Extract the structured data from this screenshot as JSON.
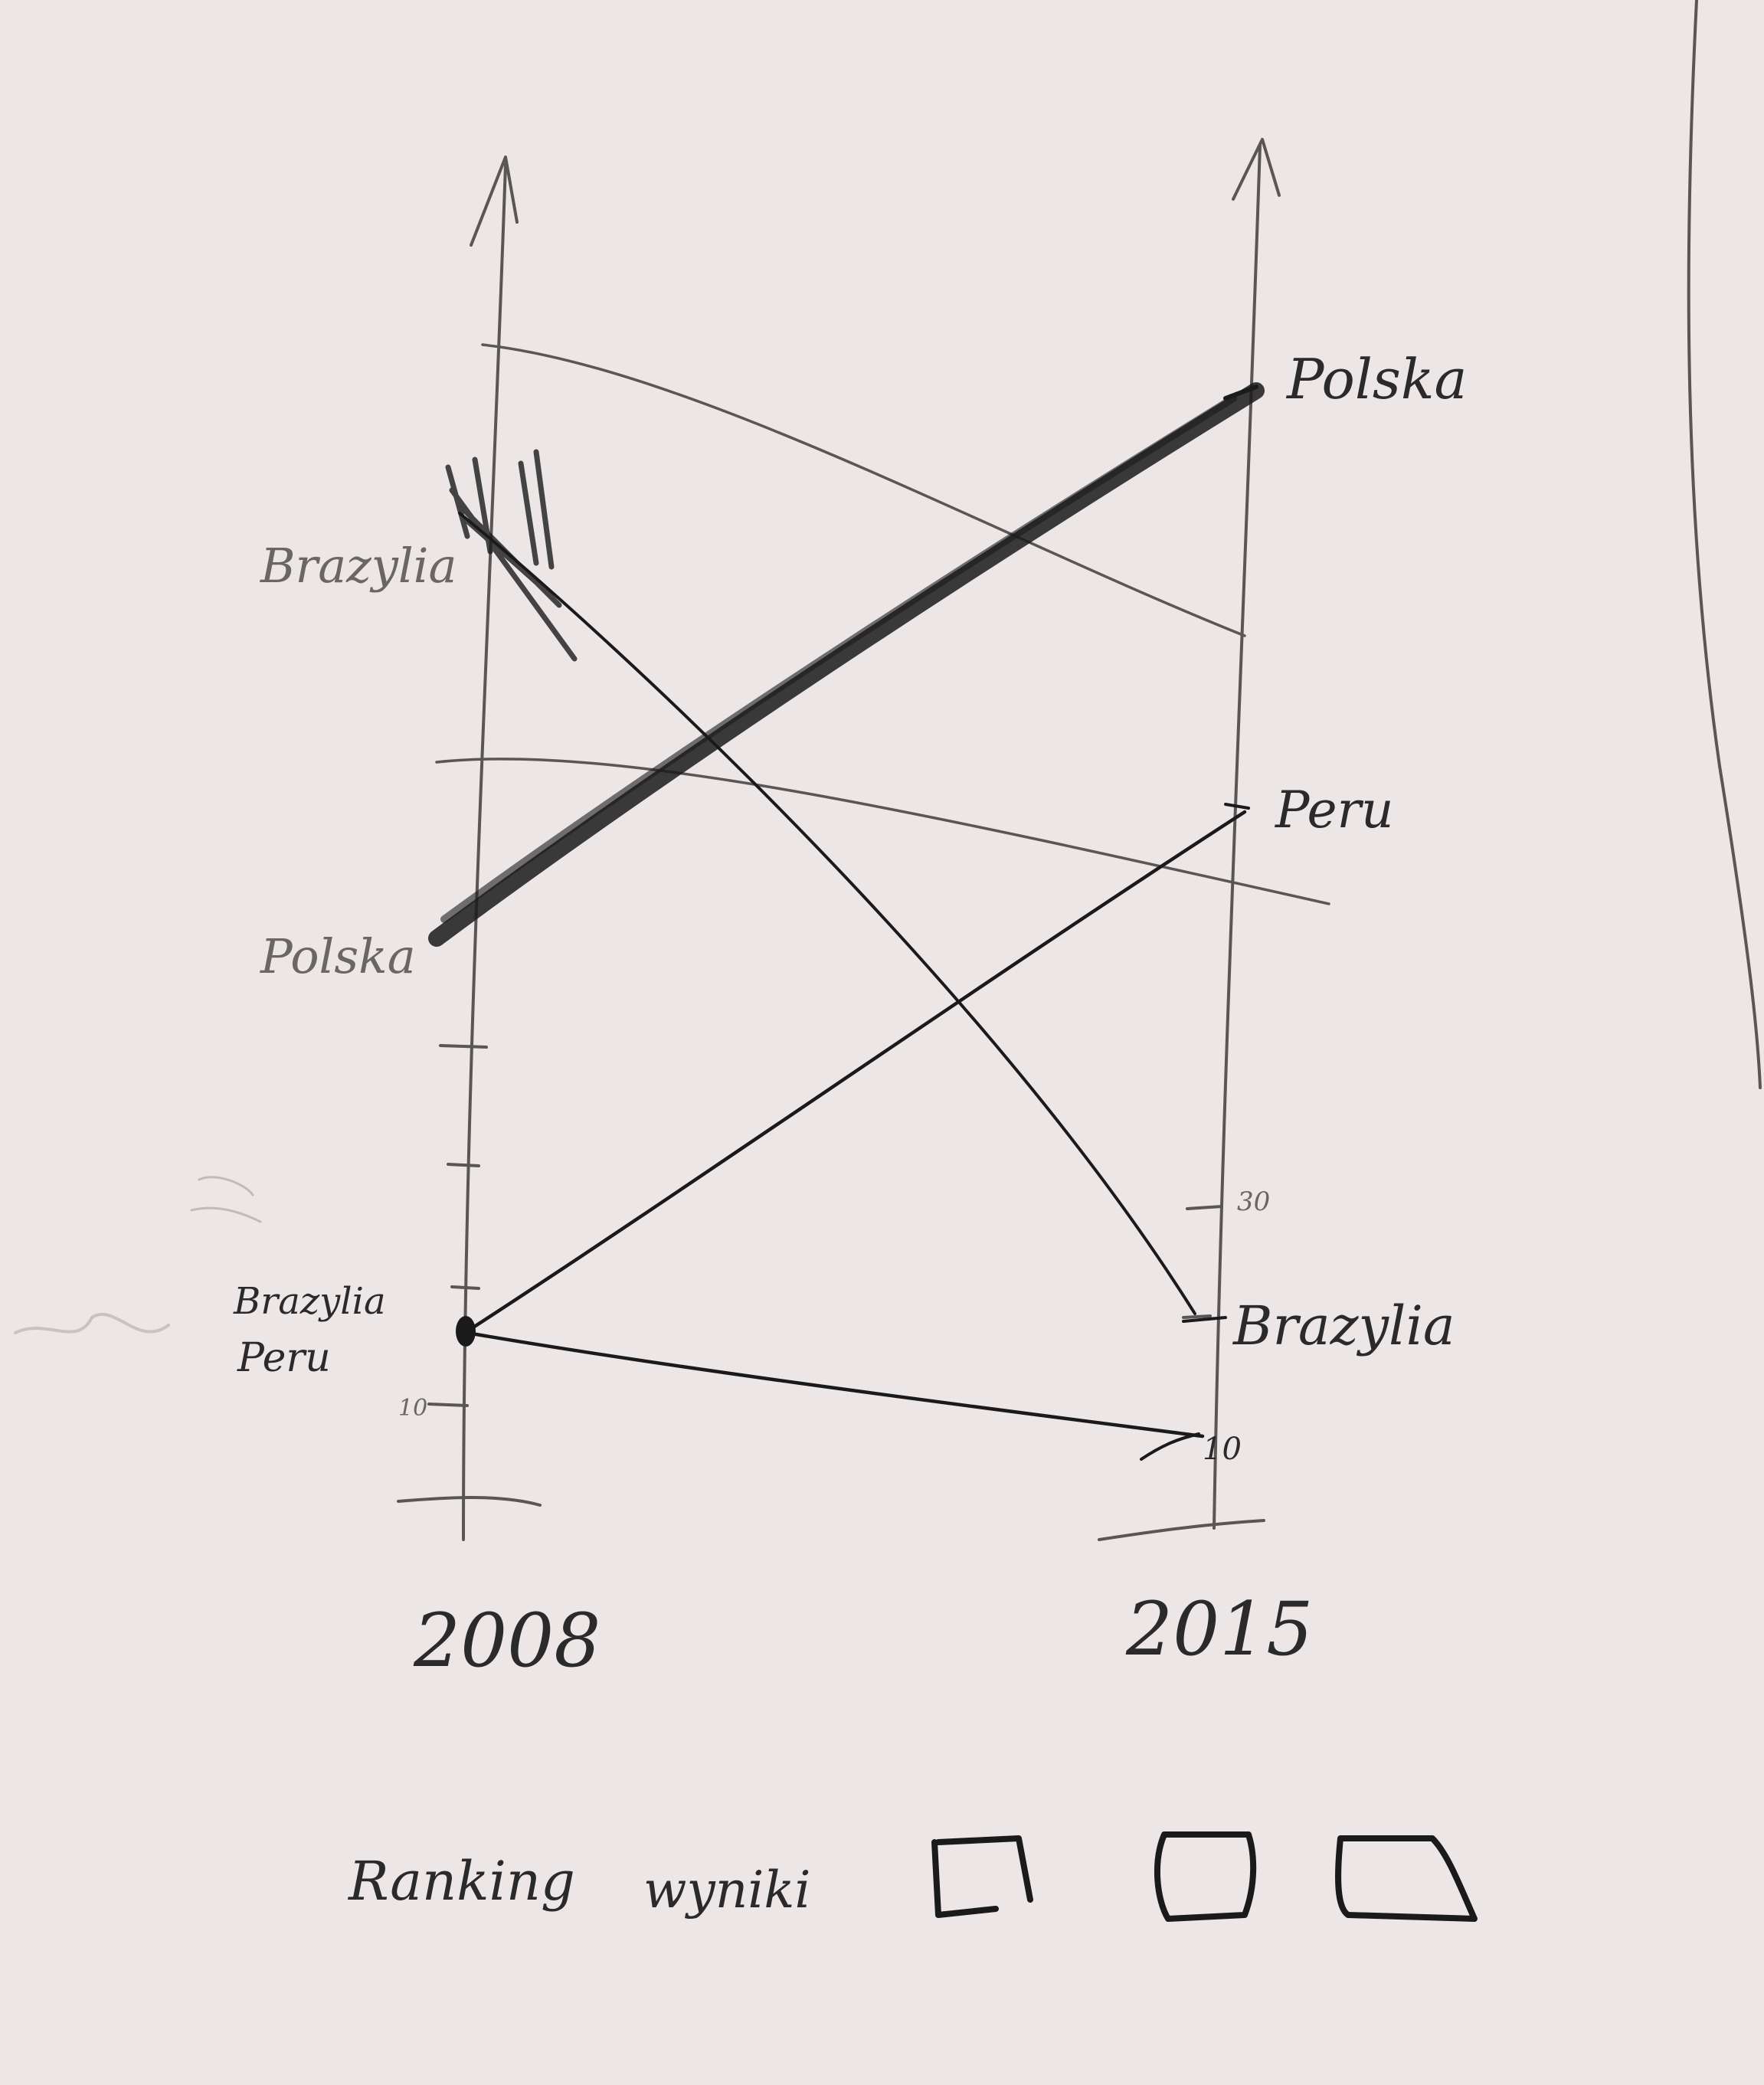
{
  "axes": {
    "left_year": "2008",
    "right_year": "2015"
  },
  "labels": {
    "left_top": "Brazylia",
    "left_mid": "Polska",
    "left_bottom_1": "Brazylia",
    "left_bottom_2": "Peru",
    "left_tick": "10",
    "right_top": "Polska",
    "right_mid": "Peru",
    "right_bottom": "Brazylia",
    "right_tick_upper": "30",
    "right_tick_lower": "10"
  },
  "footer": {
    "word_1": "Ranking",
    "word_2": "wyniki"
  },
  "colors": {
    "paper": "#ece6e6",
    "pencil": "#5a5656",
    "ink": "#1a1a1a"
  }
}
